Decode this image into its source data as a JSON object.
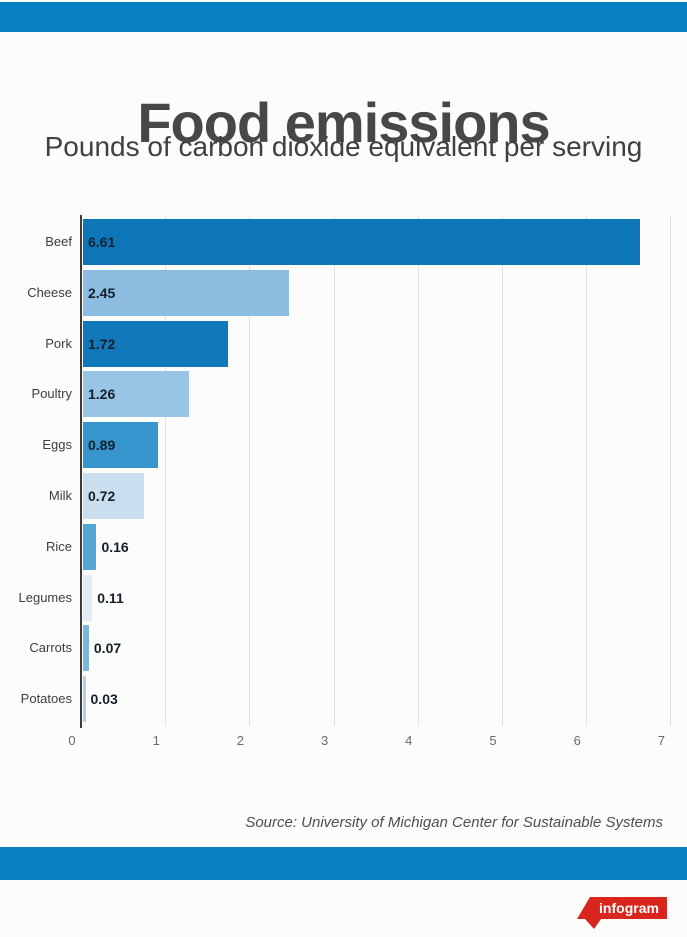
{
  "page": {
    "background": "#fcfcfa",
    "accent_band_color": "#0780c2"
  },
  "header": {
    "title": "Food emissions",
    "subtitle": "Pounds of carbon dioxide equivalent per serving"
  },
  "chart_data": {
    "type": "bar",
    "orientation": "horizontal",
    "title": "Food emissions",
    "subtitle": "Pounds of carbon dioxide equivalent per serving",
    "categories": [
      "Beef",
      "Cheese",
      "Pork",
      "Poultry",
      "Eggs",
      "Milk",
      "Rice",
      "Legumes",
      "Carrots",
      "Potatoes"
    ],
    "values": [
      6.61,
      2.45,
      1.72,
      1.26,
      0.89,
      0.72,
      0.16,
      0.11,
      0.07,
      0.03
    ],
    "value_labels": [
      "6.61",
      "2.45",
      "1.72",
      "1.26",
      "0.89",
      "0.72",
      "0.16",
      "0.11",
      "0.07",
      "0.03"
    ],
    "bar_colors": [
      "#0d76b8",
      "#8cbcdf",
      "#1179bb",
      "#99c5e5",
      "#3595cc",
      "#c9dfef",
      "#54a7d5",
      "#e0ebf5",
      "#7cb7db",
      "#b0d4ea"
    ],
    "x_ticks": [
      "0",
      "1",
      "2",
      "3",
      "4",
      "5",
      "6",
      "7"
    ],
    "xlim": [
      0,
      7
    ],
    "grid": true,
    "gridline_color": "#e0e0e0",
    "axis_color": "#3c3c3c",
    "legend": "none"
  },
  "footer": {
    "source": "Source: University of Michigan Center for Sustainable Systems",
    "logo_text": "infogram",
    "logo_color": "#d8261f"
  }
}
